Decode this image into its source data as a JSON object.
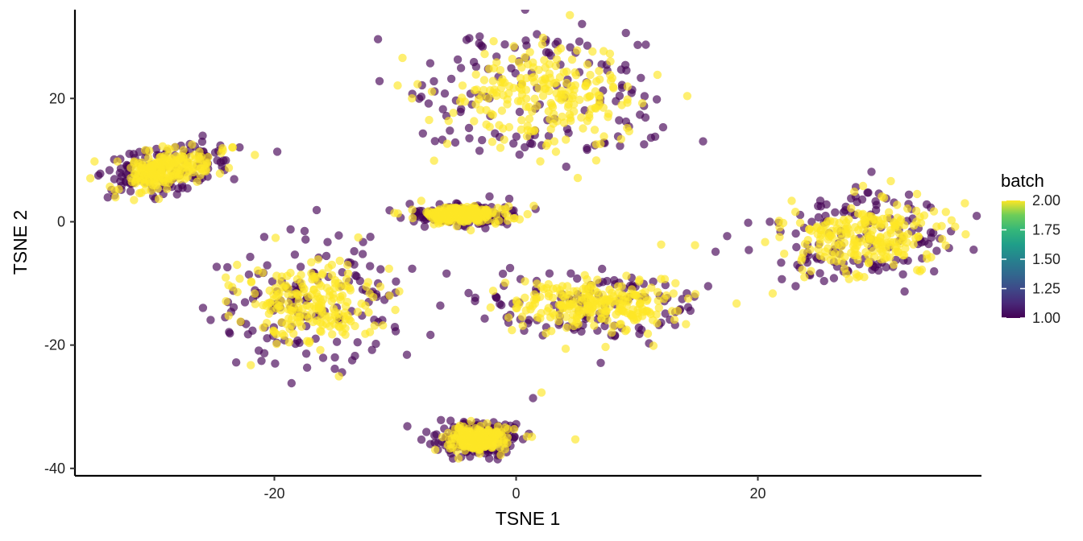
{
  "chart_data": {
    "type": "scatter",
    "xlabel": "TSNE 1",
    "ylabel": "TSNE 2",
    "xlim": [
      -36.5,
      38.5
    ],
    "ylim": [
      -41.2,
      34.4
    ],
    "x_ticks": [
      -20,
      0,
      20
    ],
    "x_tick_labels": [
      "-20",
      "0",
      "20"
    ],
    "y_ticks": [
      -40,
      -20,
      0,
      20
    ],
    "y_tick_labels": [
      "-40",
      "-20",
      "0",
      "20"
    ],
    "grid": false,
    "point_opacity": 0.65,
    "color_scale": {
      "title": "batch",
      "palette": "viridis",
      "range": [
        1.0,
        2.0
      ],
      "breaks": [
        1.0,
        1.25,
        1.5,
        1.75,
        2.0
      ],
      "break_labels": [
        "1.00",
        "1.25",
        "1.50",
        "1.75",
        "2.00"
      ],
      "low_color": "#440154",
      "high_color": "#FDE725",
      "position": "right"
    },
    "clusters": [
      {
        "center": [
          -29,
          8.5
        ],
        "spread": [
          2.6,
          1.6
        ],
        "angle_deg": 30,
        "points": [
          [
            -33.2,
            5.1
          ],
          [
            -31.5,
            6.5
          ],
          [
            -30.1,
            7.8
          ],
          [
            -28.7,
            9.4
          ],
          [
            -27.3,
            10.8
          ],
          [
            -26.2,
            11.5
          ],
          [
            -25.6,
            10.6
          ],
          [
            -29.8,
            5.9
          ],
          [
            -31.0,
            4.7
          ],
          [
            -27.0,
            12.6
          ],
          [
            -28.2,
            12.1
          ],
          [
            -30.6,
            9.0
          ]
        ]
      },
      {
        "center": [
          -17,
          -13.5
        ],
        "spread": [
          3.4,
          4.2
        ],
        "angle_deg": 0,
        "points": [
          [
            -23.4,
            -11.2
          ],
          [
            -22.0,
            -5.7
          ],
          [
            -19.9,
            -2.6
          ],
          [
            -17.5,
            -1.5
          ],
          [
            -16.5,
            1.9
          ],
          [
            -15.6,
            -3.3
          ],
          [
            -13.9,
            -8.4
          ],
          [
            -12.2,
            -14.7
          ],
          [
            -11.6,
            -19.8
          ],
          [
            -16.2,
            -20.8
          ],
          [
            -20.6,
            -18.9
          ],
          [
            -22.8,
            -16.2
          ],
          [
            -18.1,
            -12.5
          ],
          [
            -14.6,
            -17.1
          ]
        ]
      },
      {
        "center": [
          -4.5,
          1.2
        ],
        "spread": [
          2.0,
          0.8
        ],
        "angle_deg": 0,
        "points": [
          [
            -8.8,
            2.9
          ],
          [
            -6.9,
            0.6
          ],
          [
            -4.8,
            -0.7
          ],
          [
            -3.3,
            1.6
          ],
          [
            -2.2,
            4.1
          ],
          [
            -1.1,
            1.1
          ],
          [
            -1.7,
            -0.3
          ],
          [
            -5.7,
            2.2
          ]
        ]
      },
      {
        "center": [
          1.8,
          20.5
        ],
        "spread": [
          4.8,
          4.6
        ],
        "angle_deg": -10,
        "points": [
          [
            -11.3,
            22.8
          ],
          [
            -9.8,
            22.1
          ],
          [
            -7.2,
            16.5
          ],
          [
            -5.9,
            20.8
          ],
          [
            -4.1,
            29.5
          ],
          [
            -2.6,
            27.2
          ],
          [
            -0.4,
            24.9
          ],
          [
            0.8,
            29.4
          ],
          [
            3.7,
            28.1
          ],
          [
            5.9,
            25.5
          ],
          [
            7.8,
            26.0
          ],
          [
            9.6,
            21.4
          ],
          [
            10.7,
            16.9
          ],
          [
            11.5,
            13.8
          ],
          [
            8.6,
            12.3
          ],
          [
            5.1,
            7.1
          ],
          [
            2.0,
            9.8
          ],
          [
            -1.3,
            12.0
          ],
          [
            -3.9,
            15.2
          ],
          [
            -6.1,
            13.3
          ],
          [
            4.3,
            18.6
          ],
          [
            1.1,
            16.7
          ],
          [
            -2.2,
            20.0
          ],
          [
            6.5,
            14.9
          ]
        ]
      },
      {
        "center": [
          6.5,
          -13.5
        ],
        "spread": [
          4.2,
          2.4
        ],
        "angle_deg": 0,
        "points": [
          [
            -1.9,
            -11.2
          ],
          [
            -0.5,
            -7.5
          ],
          [
            1.7,
            -9.6
          ],
          [
            3.9,
            -12.1
          ],
          [
            5.4,
            -17.8
          ],
          [
            7.4,
            -20.3
          ],
          [
            7.0,
            -22.9
          ],
          [
            9.6,
            -15.1
          ],
          [
            11.7,
            -11.4
          ],
          [
            12.3,
            -9.3
          ],
          [
            13.1,
            -15.9
          ],
          [
            14.8,
            -3.8
          ],
          [
            12.0,
            -3.7
          ],
          [
            10.2,
            -18.2
          ],
          [
            4.1,
            -20.6
          ],
          [
            -2.6,
            -15.7
          ],
          [
            6.2,
            -10.4
          ]
        ]
      },
      {
        "center": [
          28.5,
          -2.5
        ],
        "spread": [
          3.5,
          3.0
        ],
        "angle_deg": 20,
        "points": [
          [
            20.6,
            -3.3
          ],
          [
            22.1,
            -0.2
          ],
          [
            23.6,
            -6.3
          ],
          [
            24.4,
            -8.0
          ],
          [
            26.2,
            -4.9
          ],
          [
            27.7,
            1.5
          ],
          [
            28.7,
            5.8
          ],
          [
            29.4,
            8.1
          ],
          [
            31.0,
            6.6
          ],
          [
            32.5,
            4.4
          ],
          [
            34.3,
            2.3
          ],
          [
            33.5,
            -0.2
          ],
          [
            31.7,
            -3.1
          ],
          [
            28.2,
            -9.0
          ],
          [
            26.9,
            -2.2
          ],
          [
            30.2,
            -0.9
          ]
        ]
      },
      {
        "center": [
          -3.2,
          -35.2
        ],
        "spread": [
          1.5,
          1.3
        ],
        "angle_deg": 0,
        "points": [
          [
            -5.1,
            -36.0
          ],
          [
            -3.8,
            -34.1
          ],
          [
            -2.4,
            -32.7
          ],
          [
            -1.5,
            -35.4
          ],
          [
            -1.2,
            -37.0
          ],
          [
            -3.0,
            -37.6
          ],
          [
            -0.9,
            -32.9
          ],
          [
            1.4,
            -28.6
          ],
          [
            2.1,
            -27.7
          ],
          [
            4.9,
            -35.3
          ]
        ]
      }
    ]
  }
}
